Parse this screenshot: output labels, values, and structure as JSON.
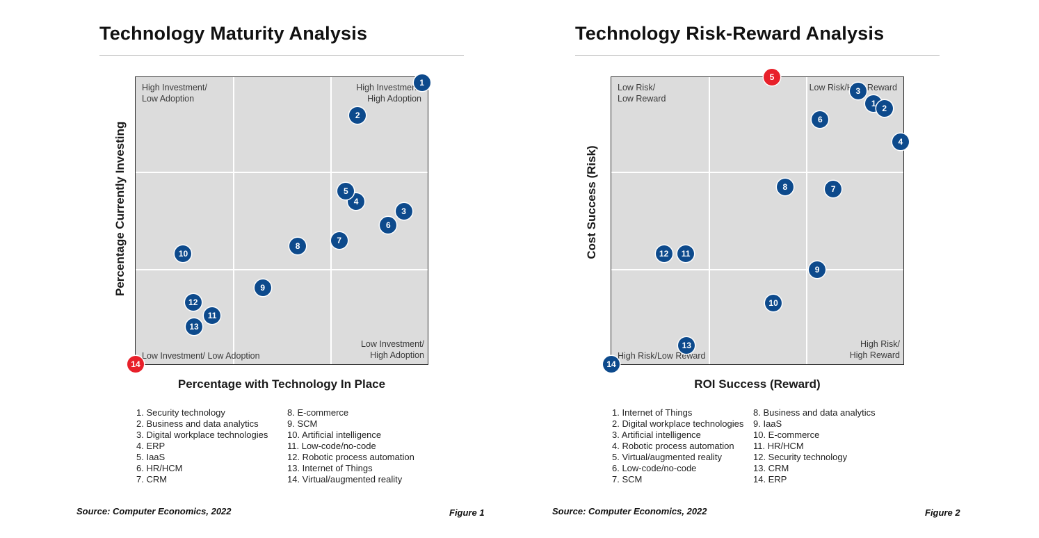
{
  "charts": [
    {
      "title": "Technology Maturity Analysis",
      "xlabel": "Percentage with Technology In Place",
      "ylabel": "Percentage Currently Investing",
      "quadrants": {
        "top_left": [
          "High Investment/",
          "Low Adoption"
        ],
        "top_right": [
          "High Investment/",
          "High Adoption"
        ],
        "bottom_left": [
          "Low Investment/ Low Adoption"
        ],
        "bottom_right": [
          "Low Investment/",
          "High Adoption"
        ]
      },
      "legend_col1": [
        "1. Security technology",
        "2. Business and data analytics",
        "3. Digital workplace technologies",
        "4. ERP",
        "5. IaaS",
        "6. HR/HCM",
        "7. CRM"
      ],
      "legend_col2": [
        "8. E-commerce",
        "9. SCM",
        "10. Artificial intelligence",
        "11. Low-code/no-code",
        "12. Robotic process automation",
        "13. Internet of Things",
        "14. Virtual/augmented reality"
      ],
      "source": "Source: Computer Economics, 2022",
      "figure": "Figure 1"
    },
    {
      "title": "Technology Risk-Reward Analysis",
      "xlabel": "ROI Success (Reward)",
      "ylabel": "Cost Success (Risk)",
      "quadrants": {
        "top_left": [
          "Low Risk/",
          "Low Reward"
        ],
        "top_right": [
          "Low Risk/High Reward"
        ],
        "bottom_left": [
          "High Risk/Low Reward"
        ],
        "bottom_right": [
          "High Risk/",
          "High Reward"
        ]
      },
      "legend_col1": [
        "1. Internet of Things",
        "2. Digital workplace technologies",
        "3. Artificial intelligence",
        "4. Robotic process automation",
        "5. Virtual/augmented reality",
        "6. Low-code/no-code",
        "7. SCM"
      ],
      "legend_col2": [
        "8. Business and data analytics",
        "9. IaaS",
        "10. E-commerce",
        "11. HR/HCM",
        "12. Security technology",
        "13. CRM",
        "14. ERP"
      ],
      "source": "Source: Computer Economics, 2022",
      "figure": "Figure 2"
    }
  ],
  "chart_data": [
    {
      "type": "scatter",
      "title": "Technology Maturity Analysis",
      "xlabel": "Percentage with Technology In Place",
      "ylabel": "Percentage Currently Investing",
      "xlim": [
        0,
        1
      ],
      "ylim": [
        0,
        1
      ],
      "grid": true,
      "points": [
        {
          "label": "1",
          "x": 0.98,
          "y": 0.98,
          "color": "#0d4a8c"
        },
        {
          "label": "2",
          "x": 0.76,
          "y": 0.866,
          "color": "#0d4a8c"
        },
        {
          "label": "3",
          "x": 0.918,
          "y": 0.532,
          "color": "#0d4a8c"
        },
        {
          "label": "4",
          "x": 0.755,
          "y": 0.567,
          "color": "#0d4a8c"
        },
        {
          "label": "5",
          "x": 0.72,
          "y": 0.604,
          "color": "#0d4a8c"
        },
        {
          "label": "6",
          "x": 0.865,
          "y": 0.484,
          "color": "#0d4a8c"
        },
        {
          "label": "7",
          "x": 0.697,
          "y": 0.432,
          "color": "#0d4a8c"
        },
        {
          "label": "8",
          "x": 0.555,
          "y": 0.412,
          "color": "#0d4a8c"
        },
        {
          "label": "9",
          "x": 0.435,
          "y": 0.266,
          "color": "#0d4a8c"
        },
        {
          "label": "10",
          "x": 0.163,
          "y": 0.386,
          "color": "#0d4a8c"
        },
        {
          "label": "11",
          "x": 0.262,
          "y": 0.17,
          "color": "#0d4a8c"
        },
        {
          "label": "12",
          "x": 0.197,
          "y": 0.216,
          "color": "#0d4a8c"
        },
        {
          "label": "13",
          "x": 0.2,
          "y": 0.13,
          "color": "#0d4a8c"
        },
        {
          "label": "14",
          "x": 0.0,
          "y": 0.0,
          "color": "#e8202a"
        }
      ]
    },
    {
      "type": "scatter",
      "title": "Technology Risk-Reward Analysis",
      "xlabel": "ROI Success (Reward)",
      "ylabel": "Cost Success (Risk)",
      "xlim": [
        0,
        1
      ],
      "ylim": [
        0,
        1
      ],
      "grid": true,
      "points": [
        {
          "label": "1",
          "x": 0.898,
          "y": 0.908,
          "color": "#0d4a8c"
        },
        {
          "label": "2",
          "x": 0.935,
          "y": 0.89,
          "color": "#0d4a8c"
        },
        {
          "label": "3",
          "x": 0.845,
          "y": 0.951,
          "color": "#0d4a8c"
        },
        {
          "label": "4",
          "x": 0.99,
          "y": 0.776,
          "color": "#0d4a8c"
        },
        {
          "label": "5",
          "x": 0.55,
          "y": 1.0,
          "color": "#e8202a"
        },
        {
          "label": "6",
          "x": 0.715,
          "y": 0.852,
          "color": "#0d4a8c"
        },
        {
          "label": "7",
          "x": 0.76,
          "y": 0.61,
          "color": "#0d4a8c"
        },
        {
          "label": "8",
          "x": 0.595,
          "y": 0.617,
          "color": "#0d4a8c"
        },
        {
          "label": "9",
          "x": 0.705,
          "y": 0.33,
          "color": "#0d4a8c"
        },
        {
          "label": "10",
          "x": 0.555,
          "y": 0.212,
          "color": "#0d4a8c"
        },
        {
          "label": "11",
          "x": 0.255,
          "y": 0.386,
          "color": "#0d4a8c"
        },
        {
          "label": "12",
          "x": 0.18,
          "y": 0.386,
          "color": "#0d4a8c"
        },
        {
          "label": "13",
          "x": 0.258,
          "y": 0.065,
          "color": "#0d4a8c"
        },
        {
          "label": "14",
          "x": 0.0,
          "y": 0.0,
          "color": "#0d4a8c"
        }
      ]
    }
  ]
}
